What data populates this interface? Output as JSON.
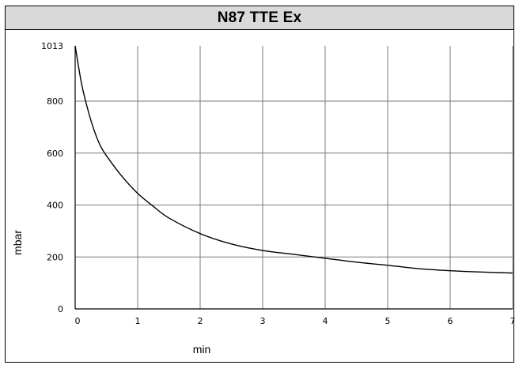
{
  "chart_data": {
    "type": "line",
    "title": "N87 TTE Ex",
    "xlabel": "min",
    "ylabel": "mbar",
    "xlim": [
      0,
      7
    ],
    "ylim": [
      0,
      1013
    ],
    "x_ticks": [
      "0",
      "1",
      "2",
      "3",
      "4",
      "5",
      "6",
      "7"
    ],
    "y_ticks": [
      "0",
      "200",
      "400",
      "600",
      "800",
      "1013"
    ],
    "y_tick_values": [
      0,
      200,
      400,
      600,
      800,
      1013
    ],
    "grid": true,
    "series": [
      {
        "color": "#000000",
        "x": [
          0,
          0.1,
          0.2,
          0.3,
          0.4,
          0.5,
          0.75,
          1,
          1.25,
          1.5,
          2,
          2.5,
          3,
          3.5,
          4,
          4.5,
          5,
          5.5,
          6,
          6.5,
          7
        ],
        "y": [
          1013,
          870,
          770,
          690,
          630,
          590,
          510,
          445,
          395,
          350,
          290,
          250,
          225,
          210,
          195,
          180,
          168,
          155,
          147,
          142,
          138
        ]
      }
    ]
  }
}
